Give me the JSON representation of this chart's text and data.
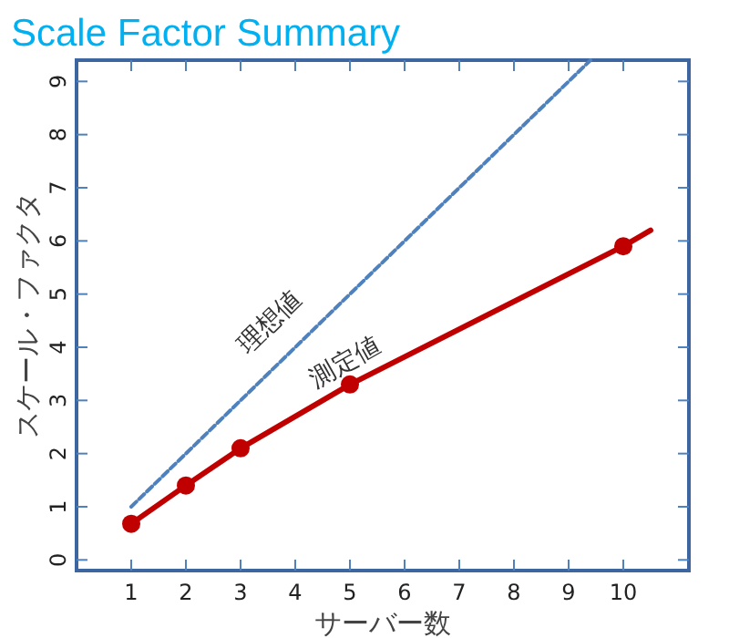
{
  "chart_data": {
    "type": "line",
    "title": "Scale Factor Summary",
    "xlabel": "サーバー数",
    "ylabel": "スケール・ファクタ",
    "xlim": [
      0,
      11.2
    ],
    "ylim": [
      -0.2,
      9.4
    ],
    "xticks": [
      1,
      2,
      3,
      4,
      5,
      6,
      7,
      8,
      9,
      10
    ],
    "yticks": [
      0,
      1,
      2,
      3,
      4,
      5,
      6,
      7,
      8,
      9
    ],
    "grid": false,
    "series": [
      {
        "name": "理想値",
        "type": "line",
        "color": "#4f81bd",
        "line_style": "dashed",
        "marker": "none",
        "x": [
          1,
          9.4
        ],
        "values": [
          1,
          9.4
        ]
      },
      {
        "name": "測定値",
        "color": "#c00000",
        "line_style": "solid",
        "marker": "none",
        "x": [
          1,
          2,
          3,
          5,
          10,
          10.5
        ],
        "values": [
          0.68,
          1.4,
          2.1,
          3.3,
          5.9,
          6.2
        ]
      },
      {
        "type": "scatter",
        "color": "#c00000",
        "marker": "circle",
        "x": [
          1,
          2,
          3,
          5,
          10
        ],
        "values": [
          0.68,
          1.4,
          2.1,
          3.3,
          5.9
        ]
      }
    ]
  }
}
